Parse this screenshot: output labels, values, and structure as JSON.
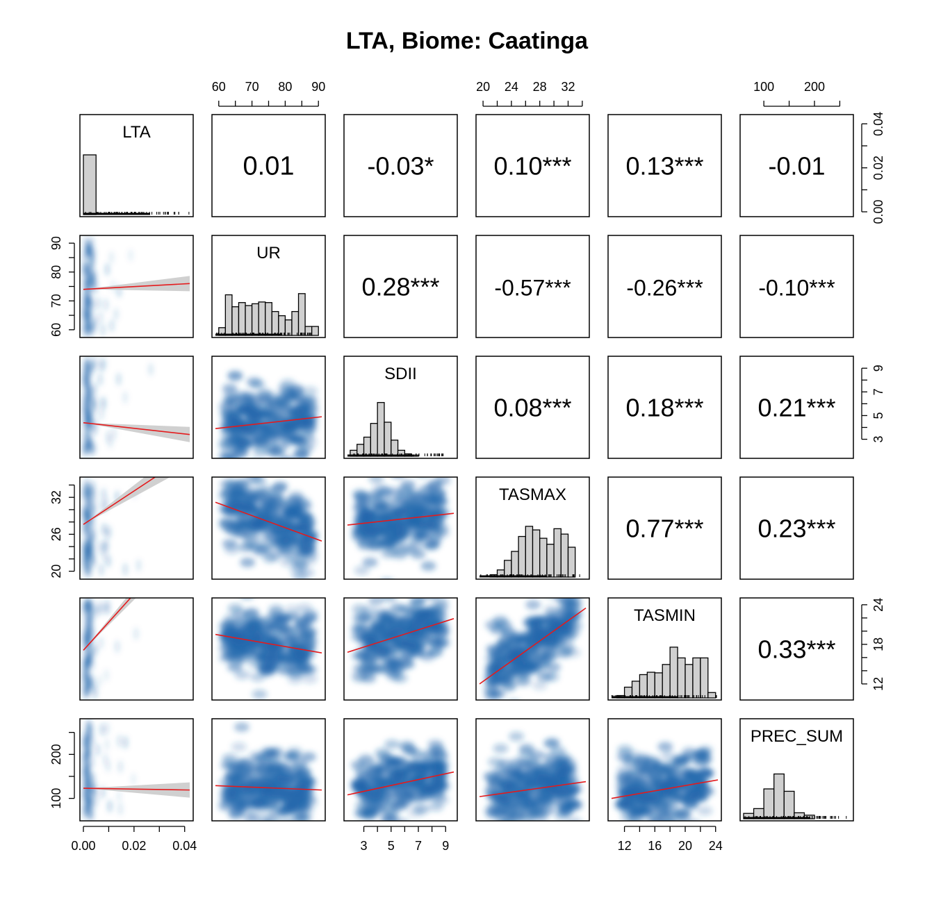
{
  "chart_data": {
    "type": "scatter",
    "title": "LTA, Biome: Caatinga",
    "variables": [
      "LTA",
      "UR",
      "SDII",
      "TASMAX",
      "TASMIN",
      "PREC_SUM"
    ],
    "correlations": [
      [
        "LTA",
        "UR",
        "0.01"
      ],
      [
        "LTA",
        "SDII",
        "-0.03*"
      ],
      [
        "LTA",
        "TASMAX",
        "0.10***"
      ],
      [
        "LTA",
        "TASMIN",
        "0.13***"
      ],
      [
        "LTA",
        "PREC_SUM",
        "-0.01"
      ],
      [
        "UR",
        "SDII",
        "0.28***"
      ],
      [
        "UR",
        "TASMAX",
        "-0.57***"
      ],
      [
        "UR",
        "TASMIN",
        "-0.26***"
      ],
      [
        "UR",
        "PREC_SUM",
        "-0.10***"
      ],
      [
        "SDII",
        "TASMAX",
        "0.08***"
      ],
      [
        "SDII",
        "TASMIN",
        "0.18***"
      ],
      [
        "SDII",
        "PREC_SUM",
        "0.21***"
      ],
      [
        "TASMAX",
        "TASMIN",
        "0.77***"
      ],
      [
        "TASMAX",
        "PREC_SUM",
        "0.23***"
      ],
      [
        "TASMIN",
        "PREC_SUM",
        "0.33***"
      ]
    ],
    "axis_ranges": {
      "LTA": [
        0,
        0.042
      ],
      "UR": [
        59,
        91
      ],
      "SDII": [
        1.8,
        9.6
      ],
      "TASMAX": [
        19.5,
        34.5
      ],
      "TASMIN": [
        10.3,
        24.3
      ],
      "PREC_SUM": [
        60,
        270
      ]
    },
    "axis_ticks": {
      "LTA": [
        0.0,
        0.01,
        0.02,
        0.03,
        0.04
      ],
      "UR": [
        60,
        65,
        70,
        75,
        80,
        85,
        90
      ],
      "SDII": [
        3,
        4,
        5,
        6,
        7,
        8,
        9
      ],
      "TASMAX": [
        20,
        22,
        24,
        26,
        28,
        30,
        32,
        34
      ],
      "TASMIN": [
        12,
        14,
        16,
        18,
        20,
        22,
        24
      ],
      "PREC_SUM": [
        100,
        150,
        200,
        250
      ]
    },
    "tick_labels": {
      "LTA": [
        "0.00",
        "0.02",
        "0.04"
      ],
      "UR": [
        "60",
        "70",
        "80",
        "90"
      ],
      "SDII": [
        "3",
        "5",
        "7",
        "9"
      ],
      "TASMAX_top": [
        "20",
        "24",
        "28",
        "32"
      ],
      "TASMAX_left": [
        "20",
        "26",
        "32"
      ],
      "TASMIN": [
        "12",
        "16",
        "20",
        "24"
      ],
      "TASMIN_right": [
        "12",
        "18",
        "24"
      ],
      "PREC_SUM": [
        "100",
        "200"
      ]
    },
    "histograms": {
      "LTA": {
        "breaks": [
          0,
          0.005
        ],
        "counts": [
          1
        ]
      },
      "UR": {
        "breaks": [
          60,
          62,
          64,
          66,
          68,
          70,
          72,
          74,
          76,
          78,
          80,
          82,
          84,
          86,
          88,
          90
        ],
        "counts": [
          0.13,
          0.68,
          0.48,
          0.55,
          0.5,
          0.53,
          0.56,
          0.55,
          0.4,
          0.33,
          0.26,
          0.4,
          0.7,
          0.15,
          0.15
        ]
      },
      "SDII": {
        "breaks": [
          2,
          2.5,
          3,
          3.5,
          4,
          4.5,
          5,
          5.5,
          6,
          6.5,
          7
        ],
        "counts": [
          0.1,
          0.2,
          0.32,
          0.55,
          0.9,
          0.57,
          0.27,
          0.1,
          0.04,
          0.02
        ]
      },
      "TASMAX": {
        "breaks": [
          21,
          22,
          23,
          24,
          25,
          26,
          27,
          28,
          29,
          30,
          31,
          32,
          33
        ],
        "counts": [
          0.04,
          0.12,
          0.28,
          0.43,
          0.68,
          0.85,
          0.79,
          0.65,
          0.55,
          0.81,
          0.72,
          0.5
        ]
      },
      "TASMIN": {
        "breaks": [
          11,
          12,
          13,
          14,
          15,
          16,
          17,
          18,
          19,
          20,
          21,
          22,
          23,
          24
        ],
        "counts": [
          0.04,
          0.18,
          0.28,
          0.39,
          0.43,
          0.42,
          0.56,
          0.85,
          0.67,
          0.56,
          0.67,
          0.67,
          0.09
        ]
      },
      "PREC_SUM": {
        "breaks": [
          60,
          80,
          100,
          120,
          140,
          160,
          180,
          200
        ],
        "counts": [
          0.09,
          0.17,
          0.5,
          0.75,
          0.46,
          0.1,
          0.06
        ]
      }
    },
    "regression_lines": [
      {
        "x": "LTA",
        "y": "UR",
        "x0": 0,
        "y0": 74.0,
        "x1": 0.042,
        "y1": 76.0
      },
      {
        "x": "LTA",
        "y": "SDII",
        "x0": 0,
        "y0": 4.4,
        "x1": 0.042,
        "y1": 3.4
      },
      {
        "x": "LTA",
        "y": "TASMAX",
        "x0": 0,
        "y0": 27.6,
        "x1": 0.042,
        "y1": 39.0
      },
      {
        "x": "LTA",
        "y": "TASMIN",
        "x0": 0,
        "y0": 17.1,
        "x1": 0.042,
        "y1": 35.0
      },
      {
        "x": "LTA",
        "y": "PREC_SUM",
        "x0": 0,
        "y0": 123,
        "x1": 0.042,
        "y1": 119
      },
      {
        "x": "UR",
        "y": "SDII",
        "x0": 59,
        "y0": 3.9,
        "x1": 91,
        "y1": 4.9
      },
      {
        "x": "UR",
        "y": "TASMAX",
        "x0": 59,
        "y0": 31.2,
        "x1": 91,
        "y1": 24.9
      },
      {
        "x": "UR",
        "y": "TASMIN",
        "x0": 59,
        "y0": 19.5,
        "x1": 91,
        "y1": 16.7
      },
      {
        "x": "UR",
        "y": "PREC_SUM",
        "x0": 59,
        "y0": 129,
        "x1": 91,
        "y1": 119
      },
      {
        "x": "SDII",
        "y": "TASMAX",
        "x0": 1.8,
        "y0": 27.5,
        "x1": 9.6,
        "y1": 29.4
      },
      {
        "x": "SDII",
        "y": "TASMIN",
        "x0": 1.8,
        "y0": 16.8,
        "x1": 9.6,
        "y1": 21.9
      },
      {
        "x": "SDII",
        "y": "PREC_SUM",
        "x0": 1.8,
        "y0": 108,
        "x1": 9.6,
        "y1": 160
      },
      {
        "x": "TASMAX",
        "y": "TASMIN",
        "x0": 19.5,
        "y0": 12.0,
        "x1": 34.5,
        "y1": 23.5
      },
      {
        "x": "TASMAX",
        "y": "PREC_SUM",
        "x0": 19.5,
        "y0": 104,
        "x1": 34.5,
        "y1": 138
      },
      {
        "x": "TASMIN",
        "y": "PREC_SUM",
        "x0": 10.3,
        "y0": 100,
        "x1": 24.3,
        "y1": 142
      }
    ]
  }
}
